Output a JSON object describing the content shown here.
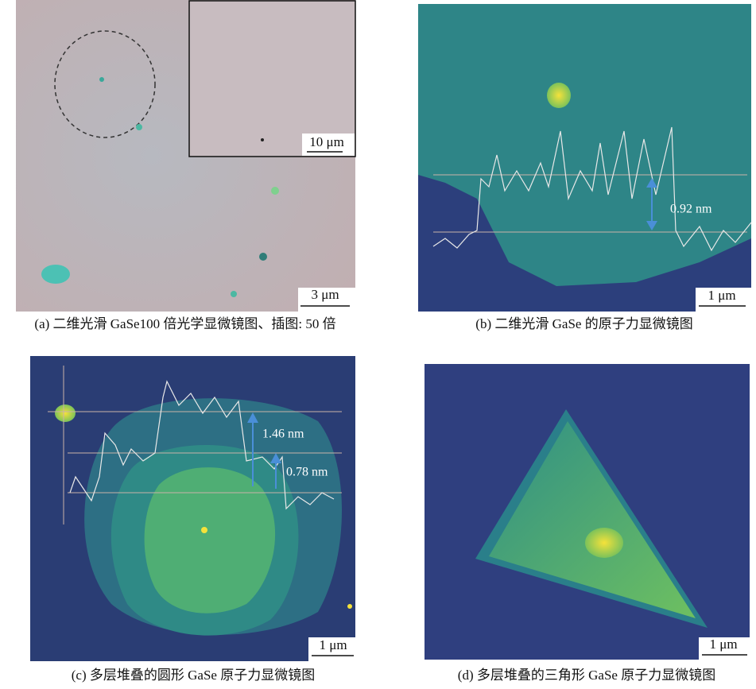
{
  "panels": [
    {
      "caption": "(a) 二维光滑 GaSe100 倍光学显微镜图、插图: 50 倍",
      "scale_bar": "3 μm",
      "inset_scale_bar": "10 μm"
    },
    {
      "caption": "(b) 二维光滑 GaSe 的原子力显微镜图",
      "scale_bar": "1 μm",
      "annotations": [
        "0.92 nm"
      ]
    },
    {
      "caption": "(c) 多层堆叠的圆形 GaSe 原子力显微镜图",
      "scale_bar": "1 μm",
      "annotations": [
        "1.46 nm",
        "0.78 nm"
      ]
    },
    {
      "caption": "(d) 多层堆叠的三角形 GaSe 原子力显微镜图",
      "scale_bar": "1 μm"
    }
  ]
}
